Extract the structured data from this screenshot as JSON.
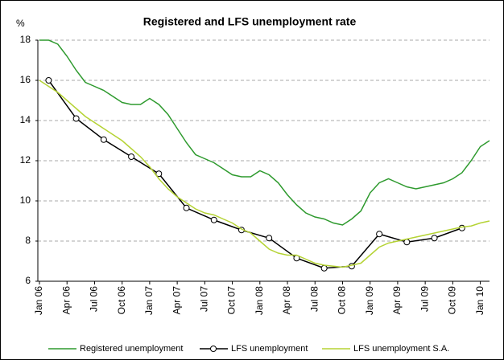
{
  "chart_data": {
    "type": "line",
    "title": "Registered and LFS unemployment rate",
    "y_label": "%",
    "x": [
      0,
      1,
      2,
      3,
      4,
      5,
      6,
      7,
      8,
      9,
      10,
      11,
      12,
      13,
      14,
      15,
      16,
      17,
      18,
      19,
      20,
      21,
      22,
      23,
      24,
      25,
      26,
      27,
      28,
      29,
      30,
      31,
      32,
      33,
      34,
      35,
      36,
      37,
      38,
      39,
      40,
      41,
      42,
      43,
      44,
      45,
      46,
      47,
      48,
      49
    ],
    "xlim": [
      0,
      49
    ],
    "xticks": [
      {
        "value": 0,
        "label": "Jan 06"
      },
      {
        "value": 3,
        "label": "Apr 06"
      },
      {
        "value": 6,
        "label": "Jul 06"
      },
      {
        "value": 9,
        "label": "Oct 06"
      },
      {
        "value": 12,
        "label": "Jan 07"
      },
      {
        "value": 15,
        "label": "Apr 07"
      },
      {
        "value": 18,
        "label": "Jul 07"
      },
      {
        "value": 21,
        "label": "Oct 07"
      },
      {
        "value": 24,
        "label": "Jan 08"
      },
      {
        "value": 27,
        "label": "Apr 08"
      },
      {
        "value": 30,
        "label": "Jul 08"
      },
      {
        "value": 33,
        "label": "Oct 08"
      },
      {
        "value": 36,
        "label": "Jan 09"
      },
      {
        "value": 39,
        "label": "Apr 09"
      },
      {
        "value": 42,
        "label": "Jul 09"
      },
      {
        "value": 45,
        "label": "Oct 09"
      },
      {
        "value": 48,
        "label": "Jan 10"
      }
    ],
    "ylim": [
      6,
      18
    ],
    "yticks": [
      6,
      8,
      10,
      12,
      14,
      16,
      18
    ],
    "grid": true,
    "legend": "bottom",
    "series": [
      {
        "name": "Registered unemployment",
        "color": "#2e9a2e",
        "values": [
          18.0,
          18.0,
          17.8,
          17.2,
          16.5,
          15.9,
          15.7,
          15.5,
          15.2,
          14.9,
          14.8,
          14.8,
          15.1,
          14.8,
          14.3,
          13.6,
          12.9,
          12.3,
          12.1,
          11.9,
          11.6,
          11.3,
          11.2,
          11.2,
          11.5,
          11.3,
          10.9,
          10.3,
          9.8,
          9.4,
          9.2,
          9.1,
          8.9,
          8.8,
          9.1,
          9.5,
          10.4,
          10.9,
          11.1,
          10.9,
          10.7,
          10.6,
          10.7,
          10.8,
          10.9,
          11.1,
          11.4,
          12.0,
          12.7,
          13.0
        ]
      },
      {
        "name": "LFS unemployment",
        "color": "#000000",
        "marker": "circle",
        "x": [
          1,
          4,
          7,
          10,
          13,
          16,
          19,
          22,
          25,
          28,
          31,
          34,
          37,
          40,
          43,
          46
        ],
        "values": [
          16.0,
          14.1,
          13.05,
          12.2,
          11.35,
          9.65,
          9.05,
          8.55,
          8.15,
          7.15,
          6.65,
          6.75,
          8.35,
          7.95,
          8.15,
          8.65
        ]
      },
      {
        "name": "LFS unemployment S.A.",
        "color": "#b5d334",
        "values": [
          16.0,
          15.7,
          15.4,
          15.0,
          14.6,
          14.2,
          13.9,
          13.6,
          13.3,
          13.0,
          12.6,
          12.2,
          11.7,
          11.1,
          10.6,
          10.2,
          9.9,
          9.6,
          9.4,
          9.3,
          9.1,
          8.9,
          8.6,
          8.4,
          8.0,
          7.6,
          7.4,
          7.3,
          7.3,
          7.1,
          6.9,
          6.8,
          6.75,
          6.7,
          6.8,
          6.9,
          7.3,
          7.7,
          7.9,
          8.0,
          8.1,
          8.2,
          8.3,
          8.4,
          8.5,
          8.6,
          8.7,
          8.75,
          8.9,
          9.0
        ]
      }
    ]
  }
}
